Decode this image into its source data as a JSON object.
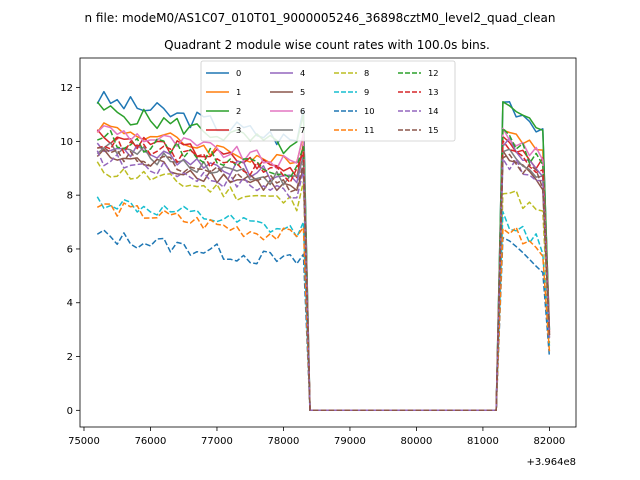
{
  "chart_data": {
    "type": "line",
    "suptitle": "n file: modeM0/AS1C07_010T01_9000005246_36898cztM0_level2_quad_clean",
    "title": "Quadrant 2 module wise count rates with 100.0s bins.",
    "xlabel": "",
    "ylabel": "",
    "x_offset_label": "+3.964e8",
    "xlim": [
      74940,
      82400
    ],
    "ylim": [
      -0.62,
      13.1
    ],
    "xticks": [
      75000,
      76000,
      77000,
      78000,
      79000,
      80000,
      81000,
      82000
    ],
    "yticks": [
      0,
      2,
      4,
      6,
      8,
      10,
      12
    ],
    "segment1": {
      "x_start": 75200,
      "x_step": 100,
      "count": 32
    },
    "segment2": {
      "x_start": 81200,
      "x_step": 100,
      "count": 9
    },
    "gap_end": 78400,
    "gap_start": 81200,
    "legend": {
      "placement": "top-center",
      "columns": 4
    },
    "series": [
      {
        "name": "0",
        "color": "#1f77b4",
        "style": "solid",
        "base": 11.6,
        "trend": -1.6,
        "amp": 0.35,
        "end": 11.2,
        "rise": 11.8,
        "tail": 3.0
      },
      {
        "name": "1",
        "color": "#ff7f0e",
        "style": "solid",
        "base": 10.6,
        "trend": -1.5,
        "amp": 0.3,
        "end": 10.2,
        "rise": 10.9,
        "tail": 2.8
      },
      {
        "name": "2",
        "color": "#2ca02c",
        "style": "solid",
        "base": 11.2,
        "trend": -1.5,
        "amp": 0.35,
        "end": 11.0,
        "rise": 11.5,
        "tail": 3.0
      },
      {
        "name": "3",
        "color": "#d62728",
        "style": "solid",
        "base": 10.3,
        "trend": -1.4,
        "amp": 0.3,
        "end": 9.9,
        "rise": 10.4,
        "tail": 2.9
      },
      {
        "name": "4",
        "color": "#9467bd",
        "style": "solid",
        "base": 9.9,
        "trend": -1.3,
        "amp": 0.3,
        "end": 9.5,
        "rise": 10.2,
        "tail": 2.8
      },
      {
        "name": "5",
        "color": "#8c564b",
        "style": "solid",
        "base": 9.5,
        "trend": -1.3,
        "amp": 0.3,
        "end": 9.0,
        "rise": 9.6,
        "tail": 2.7
      },
      {
        "name": "6",
        "color": "#e377c2",
        "style": "solid",
        "base": 10.5,
        "trend": -1.4,
        "amp": 0.3,
        "end": 10.3,
        "rise": 10.6,
        "tail": 2.9
      },
      {
        "name": "7",
        "color": "#7f7f7f",
        "style": "solid",
        "base": 9.8,
        "trend": -1.3,
        "amp": 0.3,
        "end": 9.4,
        "rise": 9.9,
        "tail": 2.8
      },
      {
        "name": "8",
        "color": "#bcbd22",
        "style": "dashed",
        "base": 9.0,
        "trend": -1.3,
        "amp": 0.3,
        "end": 8.5,
        "rise": 8.5,
        "tail": 2.5
      },
      {
        "name": "9",
        "color": "#17becf",
        "style": "dashed",
        "base": 7.8,
        "trend": -1.2,
        "amp": 0.3,
        "end": 7.0,
        "rise": 7.4,
        "tail": 2.4
      },
      {
        "name": "10",
        "color": "#1f77b4",
        "style": "dashed",
        "base": 6.5,
        "trend": -1.0,
        "amp": 0.3,
        "end": 5.8,
        "rise": 6.6,
        "tail": 2.0
      },
      {
        "name": "11",
        "color": "#ff7f0e",
        "style": "dashed",
        "base": 7.6,
        "trend": -1.2,
        "amp": 0.3,
        "end": 6.8,
        "rise": 7.1,
        "tail": 2.2
      },
      {
        "name": "12",
        "color": "#2ca02c",
        "style": "dashed",
        "base": 10.2,
        "trend": -1.3,
        "amp": 0.3,
        "end": 9.8,
        "rise": 10.4,
        "tail": 2.9
      },
      {
        "name": "13",
        "color": "#d62728",
        "style": "dashed",
        "base": 10.0,
        "trend": -1.3,
        "amp": 0.3,
        "end": 9.6,
        "rise": 10.1,
        "tail": 2.9
      },
      {
        "name": "14",
        "color": "#9467bd",
        "style": "dashed",
        "base": 9.4,
        "trend": -1.3,
        "amp": 0.3,
        "end": 8.9,
        "rise": 9.6,
        "tail": 2.7
      },
      {
        "name": "15",
        "color": "#8c564b",
        "style": "dashed",
        "base": 9.6,
        "trend": -1.3,
        "amp": 0.3,
        "end": 9.2,
        "rise": 9.8,
        "tail": 2.8
      }
    ]
  }
}
